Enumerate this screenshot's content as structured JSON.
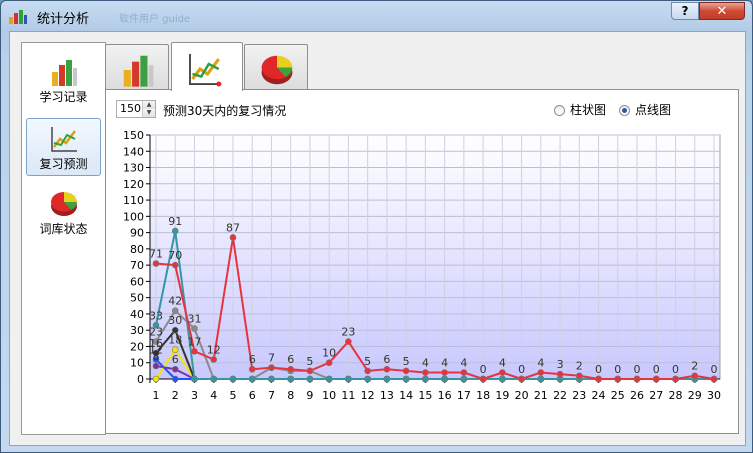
{
  "window": {
    "title": "统计分析",
    "title_ghost": "软件用户   guide",
    "help_label": "?",
    "close_label": "✕"
  },
  "nav": {
    "items": [
      {
        "label": "学习记录",
        "icon": "bar-chart-icon",
        "selected": false
      },
      {
        "label": "复习预测",
        "icon": "line-chart-icon",
        "selected": true
      },
      {
        "label": "词库状态",
        "icon": "pie-chart-icon",
        "selected": false
      }
    ]
  },
  "tabs": [
    {
      "icon": "bar-chart-icon",
      "active": false
    },
    {
      "icon": "line-chart-icon",
      "active": true
    },
    {
      "icon": "pie-chart-icon",
      "active": false
    }
  ],
  "panel": {
    "days_value": "150",
    "caption": "预测30天内的复习情况",
    "radio_bar_label": "柱状图",
    "radio_line_label": "点线图",
    "selected_mode": "点线图"
  },
  "colors": {
    "red": "#e8333f",
    "teal": "#3596a3",
    "gray": "#8a8a8a",
    "dark": "#333333",
    "blue": "#2050ff",
    "purple": "#8030a0",
    "yellow": "#f2e600",
    "plot_bg_top": "#ffffff",
    "plot_bg_bottom": "#c8c8ff"
  },
  "chart_data": {
    "type": "line",
    "x": [
      1,
      2,
      3,
      4,
      5,
      6,
      7,
      8,
      9,
      10,
      11,
      12,
      13,
      14,
      15,
      16,
      17,
      18,
      19,
      20,
      21,
      22,
      23,
      24,
      25,
      26,
      27,
      28,
      29,
      30
    ],
    "ylim": [
      0,
      150
    ],
    "yticks": [
      0,
      10,
      20,
      30,
      40,
      50,
      60,
      70,
      80,
      90,
      100,
      110,
      120,
      130,
      140,
      150
    ],
    "grid": true,
    "series": [
      {
        "color": "red",
        "values": [
          71,
          70,
          17,
          12,
          87,
          6,
          7,
          6,
          5,
          10,
          23,
          5,
          6,
          5,
          4,
          4,
          4,
          0,
          4,
          0,
          4,
          3,
          2,
          0,
          0,
          0,
          0,
          0,
          2,
          0
        ]
      },
      {
        "color": "teal",
        "values": [
          33,
          91,
          0,
          0,
          0,
          0,
          0,
          0,
          0,
          0,
          0,
          0,
          0,
          0,
          0,
          0,
          0,
          0,
          0,
          0,
          0,
          0,
          0,
          0,
          0,
          0,
          0,
          0,
          0,
          0
        ]
      },
      {
        "color": "gray",
        "values": [
          23,
          42,
          31,
          0,
          0,
          0,
          7,
          5,
          5,
          0,
          0,
          0,
          0,
          0,
          0,
          0,
          0,
          0,
          0,
          0,
          0,
          0,
          0,
          0,
          0,
          0,
          0,
          0,
          0,
          0
        ]
      },
      {
        "color": "dark",
        "values": [
          16,
          30,
          0,
          0,
          0,
          0,
          0,
          0,
          0,
          0,
          0,
          0,
          0,
          0,
          0,
          0,
          0,
          0,
          0,
          0,
          0,
          0,
          0,
          0,
          0,
          0,
          0,
          0,
          0,
          0
        ]
      },
      {
        "color": "blue",
        "values": [
          12,
          0,
          0,
          0,
          0,
          0,
          0,
          0,
          0,
          0,
          0,
          0,
          0,
          0,
          0,
          0,
          0,
          0,
          0,
          0,
          0,
          0,
          0,
          0,
          0,
          0,
          0,
          0,
          0,
          0
        ]
      },
      {
        "color": "yellow",
        "values": [
          0,
          18,
          0,
          0,
          0,
          0,
          0,
          0,
          0,
          0,
          0,
          0,
          0,
          0,
          0,
          0,
          0,
          0,
          0,
          0,
          0,
          0,
          0,
          0,
          0,
          0,
          0,
          0,
          0,
          0
        ]
      },
      {
        "color": "purple",
        "values": [
          8,
          6,
          0,
          0,
          0,
          0,
          0,
          0,
          0,
          0,
          0,
          0,
          0,
          0,
          0,
          0,
          0,
          0,
          0,
          0,
          0,
          0,
          0,
          0,
          0,
          0,
          0,
          0,
          0,
          0
        ]
      }
    ]
  }
}
